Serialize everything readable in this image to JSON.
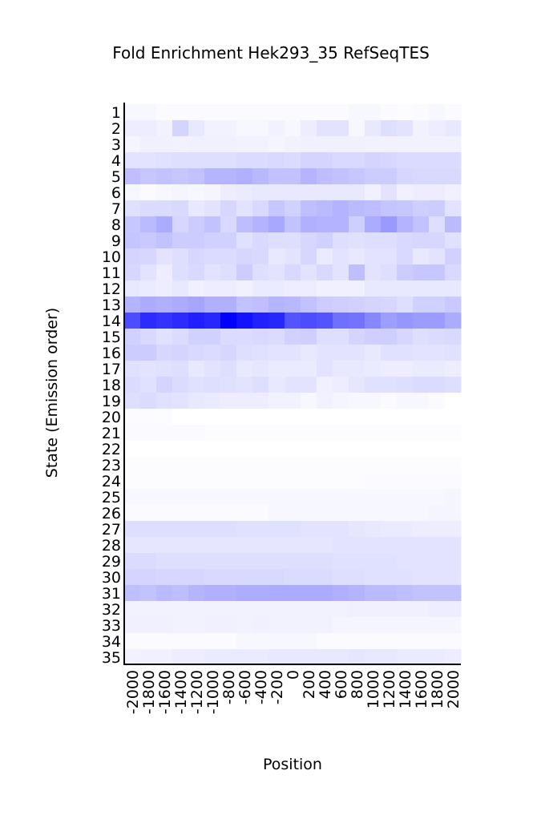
{
  "chart_data": {
    "type": "heatmap",
    "title": "Fold Enrichment Hek293_35 RefSeqTES",
    "xlabel": "Position",
    "ylabel": "State (Emission order)",
    "x": [
      "-2000",
      "-1800",
      "-1600",
      "-1400",
      "-1200",
      "-1000",
      "-800",
      "-600",
      "-400",
      "-200",
      "0",
      "200",
      "400",
      "600",
      "800",
      "1000",
      "1200",
      "1400",
      "1600",
      "1800",
      "2000"
    ],
    "y": [
      "1",
      "2",
      "3",
      "4",
      "5",
      "6",
      "7",
      "8",
      "9",
      "10",
      "11",
      "12",
      "13",
      "14",
      "15",
      "16",
      "17",
      "18",
      "19",
      "20",
      "21",
      "22",
      "23",
      "24",
      "25",
      "26",
      "27",
      "28",
      "29",
      "30",
      "31",
      "32",
      "33",
      "34",
      "35"
    ],
    "colormap": {
      "low": "#ffffff",
      "high": "#0000ff"
    },
    "value_scale": "relative intensity 0-1",
    "values": [
      [
        0.03,
        0.03,
        0.02,
        0.02,
        0.02,
        0.02,
        0.02,
        0.02,
        0.02,
        0.02,
        0.02,
        0.02,
        0.02,
        0.02,
        0.03,
        0.03,
        0.02,
        0.01,
        0.02,
        0.03,
        0.02
      ],
      [
        0.07,
        0.07,
        0.05,
        0.17,
        0.09,
        0.05,
        0.05,
        0.03,
        0.03,
        0.05,
        0.03,
        0.07,
        0.11,
        0.11,
        0.03,
        0.09,
        0.13,
        0.11,
        0.05,
        0.07,
        0.09
      ],
      [
        0.04,
        0.06,
        0.06,
        0.05,
        0.06,
        0.06,
        0.06,
        0.05,
        0.05,
        0.04,
        0.05,
        0.06,
        0.06,
        0.06,
        0.06,
        0.05,
        0.05,
        0.05,
        0.05,
        0.05,
        0.05
      ],
      [
        0.11,
        0.11,
        0.12,
        0.13,
        0.13,
        0.13,
        0.13,
        0.14,
        0.14,
        0.15,
        0.14,
        0.17,
        0.17,
        0.15,
        0.15,
        0.17,
        0.16,
        0.14,
        0.14,
        0.14,
        0.14
      ],
      [
        0.25,
        0.22,
        0.24,
        0.22,
        0.24,
        0.29,
        0.29,
        0.31,
        0.28,
        0.24,
        0.24,
        0.29,
        0.26,
        0.24,
        0.22,
        0.2,
        0.2,
        0.16,
        0.15,
        0.15,
        0.15
      ],
      [
        0.03,
        0.02,
        0.03,
        0.04,
        0.03,
        0.04,
        0.07,
        0.08,
        0.09,
        0.09,
        0.09,
        0.09,
        0.09,
        0.09,
        0.09,
        0.06,
        0.11,
        0.06,
        0.07,
        0.07,
        0.06
      ],
      [
        0.12,
        0.14,
        0.14,
        0.15,
        0.09,
        0.11,
        0.16,
        0.11,
        0.15,
        0.22,
        0.18,
        0.25,
        0.27,
        0.3,
        0.27,
        0.26,
        0.23,
        0.22,
        0.19,
        0.2,
        0.11
      ],
      [
        0.22,
        0.27,
        0.33,
        0.16,
        0.2,
        0.24,
        0.15,
        0.26,
        0.3,
        0.34,
        0.24,
        0.31,
        0.3,
        0.3,
        0.19,
        0.33,
        0.4,
        0.3,
        0.24,
        0.13,
        0.27
      ],
      [
        0.23,
        0.21,
        0.24,
        0.2,
        0.2,
        0.18,
        0.18,
        0.12,
        0.15,
        0.13,
        0.13,
        0.16,
        0.18,
        0.13,
        0.12,
        0.13,
        0.13,
        0.15,
        0.16,
        0.16,
        0.12
      ],
      [
        0.17,
        0.16,
        0.11,
        0.13,
        0.16,
        0.14,
        0.14,
        0.16,
        0.15,
        0.09,
        0.11,
        0.16,
        0.08,
        0.11,
        0.09,
        0.11,
        0.11,
        0.15,
        0.09,
        0.11,
        0.18
      ],
      [
        0.16,
        0.11,
        0.07,
        0.13,
        0.15,
        0.11,
        0.13,
        0.2,
        0.13,
        0.11,
        0.15,
        0.11,
        0.15,
        0.11,
        0.25,
        0.11,
        0.13,
        0.2,
        0.22,
        0.22,
        0.15
      ],
      [
        0.09,
        0.08,
        0.07,
        0.09,
        0.06,
        0.07,
        0.07,
        0.06,
        0.08,
        0.08,
        0.07,
        0.07,
        0.06,
        0.06,
        0.06,
        0.09,
        0.09,
        0.09,
        0.09,
        0.09,
        0.09
      ],
      [
        0.29,
        0.33,
        0.31,
        0.33,
        0.35,
        0.31,
        0.31,
        0.24,
        0.25,
        0.29,
        0.28,
        0.24,
        0.2,
        0.19,
        0.18,
        0.17,
        0.16,
        0.13,
        0.18,
        0.18,
        0.21
      ],
      [
        0.7,
        0.83,
        0.8,
        0.83,
        0.88,
        0.85,
        1.0,
        0.93,
        0.87,
        0.85,
        0.67,
        0.7,
        0.67,
        0.56,
        0.55,
        0.47,
        0.38,
        0.41,
        0.39,
        0.39,
        0.33
      ],
      [
        0.18,
        0.15,
        0.12,
        0.14,
        0.18,
        0.18,
        0.14,
        0.14,
        0.15,
        0.14,
        0.18,
        0.19,
        0.13,
        0.13,
        0.17,
        0.19,
        0.19,
        0.16,
        0.13,
        0.14,
        0.15
      ],
      [
        0.2,
        0.2,
        0.16,
        0.17,
        0.15,
        0.14,
        0.16,
        0.13,
        0.12,
        0.11,
        0.11,
        0.09,
        0.11,
        0.11,
        0.11,
        0.09,
        0.12,
        0.12,
        0.11,
        0.11,
        0.12
      ],
      [
        0.12,
        0.11,
        0.12,
        0.13,
        0.09,
        0.11,
        0.13,
        0.09,
        0.1,
        0.08,
        0.08,
        0.08,
        0.11,
        0.09,
        0.09,
        0.08,
        0.07,
        0.07,
        0.08,
        0.08,
        0.07
      ],
      [
        0.14,
        0.12,
        0.17,
        0.14,
        0.12,
        0.13,
        0.12,
        0.11,
        0.13,
        0.09,
        0.11,
        0.11,
        0.06,
        0.07,
        0.1,
        0.12,
        0.12,
        0.13,
        0.14,
        0.14,
        0.13
      ],
      [
        0.13,
        0.14,
        0.12,
        0.11,
        0.09,
        0.08,
        0.07,
        0.07,
        0.07,
        0.05,
        0.05,
        0.03,
        0.05,
        0.04,
        0.03,
        0.03,
        0.02,
        0.03,
        0.03,
        0.02,
        0.0
      ],
      [
        0.01,
        0.01,
        0.01,
        0.0,
        0.0,
        0.0,
        0.0,
        0.0,
        0.0,
        0.0,
        0.0,
        0.0,
        0.0,
        0.0,
        0.0,
        0.0,
        0.0,
        0.0,
        0.0,
        0.0,
        0.0
      ],
      [
        0.02,
        0.02,
        0.02,
        0.02,
        0.02,
        0.01,
        0.01,
        0.01,
        0.01,
        0.01,
        0.01,
        0.01,
        0.01,
        0.01,
        0.01,
        0.01,
        0.01,
        0.01,
        0.01,
        0.01,
        0.01
      ],
      [
        0.0,
        0.0,
        0.0,
        0.0,
        0.0,
        0.0,
        0.0,
        0.0,
        0.0,
        0.0,
        0.0,
        0.0,
        0.0,
        0.0,
        0.0,
        0.0,
        0.0,
        0.0,
        0.0,
        0.0,
        0.0
      ],
      [
        0.01,
        0.01,
        0.01,
        0.01,
        0.01,
        0.01,
        0.01,
        0.01,
        0.01,
        0.01,
        0.01,
        0.01,
        0.01,
        0.01,
        0.01,
        0.01,
        0.01,
        0.01,
        0.01,
        0.01,
        0.01
      ],
      [
        0.01,
        0.01,
        0.01,
        0.01,
        0.01,
        0.01,
        0.01,
        0.01,
        0.01,
        0.01,
        0.01,
        0.01,
        0.01,
        0.01,
        0.01,
        0.02,
        0.02,
        0.02,
        0.02,
        0.02,
        0.02
      ],
      [
        0.03,
        0.03,
        0.03,
        0.03,
        0.03,
        0.03,
        0.03,
        0.03,
        0.03,
        0.03,
        0.03,
        0.03,
        0.03,
        0.03,
        0.03,
        0.03,
        0.03,
        0.03,
        0.03,
        0.03,
        0.04
      ],
      [
        0.02,
        0.02,
        0.02,
        0.02,
        0.02,
        0.02,
        0.02,
        0.02,
        0.02,
        0.03,
        0.03,
        0.03,
        0.03,
        0.03,
        0.03,
        0.03,
        0.03,
        0.03,
        0.03,
        0.04,
        0.04
      ],
      [
        0.13,
        0.13,
        0.13,
        0.13,
        0.13,
        0.13,
        0.13,
        0.12,
        0.12,
        0.12,
        0.12,
        0.11,
        0.11,
        0.11,
        0.1,
        0.09,
        0.08,
        0.08,
        0.07,
        0.07,
        0.07
      ],
      [
        0.1,
        0.1,
        0.1,
        0.1,
        0.1,
        0.1,
        0.1,
        0.1,
        0.1,
        0.1,
        0.1,
        0.1,
        0.1,
        0.11,
        0.11,
        0.11,
        0.11,
        0.11,
        0.11,
        0.11,
        0.11
      ],
      [
        0.14,
        0.14,
        0.13,
        0.13,
        0.13,
        0.13,
        0.13,
        0.13,
        0.13,
        0.13,
        0.13,
        0.13,
        0.13,
        0.12,
        0.12,
        0.12,
        0.12,
        0.11,
        0.11,
        0.11,
        0.11
      ],
      [
        0.17,
        0.17,
        0.16,
        0.16,
        0.16,
        0.15,
        0.15,
        0.15,
        0.15,
        0.15,
        0.14,
        0.14,
        0.14,
        0.13,
        0.13,
        0.12,
        0.12,
        0.12,
        0.11,
        0.11,
        0.11
      ],
      [
        0.25,
        0.24,
        0.27,
        0.26,
        0.29,
        0.31,
        0.31,
        0.32,
        0.32,
        0.33,
        0.33,
        0.33,
        0.33,
        0.31,
        0.3,
        0.27,
        0.27,
        0.25,
        0.24,
        0.24,
        0.24
      ],
      [
        0.05,
        0.05,
        0.05,
        0.05,
        0.05,
        0.05,
        0.05,
        0.05,
        0.05,
        0.05,
        0.05,
        0.05,
        0.05,
        0.05,
        0.06,
        0.06,
        0.06,
        0.06,
        0.06,
        0.07,
        0.07
      ],
      [
        0.06,
        0.06,
        0.06,
        0.05,
        0.05,
        0.06,
        0.06,
        0.05,
        0.06,
        0.05,
        0.05,
        0.05,
        0.05,
        0.04,
        0.04,
        0.04,
        0.04,
        0.04,
        0.04,
        0.04,
        0.04
      ],
      [
        0.02,
        0.02,
        0.02,
        0.02,
        0.02,
        0.02,
        0.02,
        0.03,
        0.03,
        0.03,
        0.03,
        0.03,
        0.02,
        0.02,
        0.02,
        0.02,
        0.02,
        0.02,
        0.02,
        0.02,
        0.02
      ],
      [
        0.05,
        0.06,
        0.06,
        0.07,
        0.07,
        0.08,
        0.08,
        0.08,
        0.08,
        0.09,
        0.09,
        0.09,
        0.09,
        0.09,
        0.1,
        0.09,
        0.09,
        0.08,
        0.08,
        0.08,
        0.07
      ]
    ],
    "grid": false,
    "legend": "none"
  }
}
